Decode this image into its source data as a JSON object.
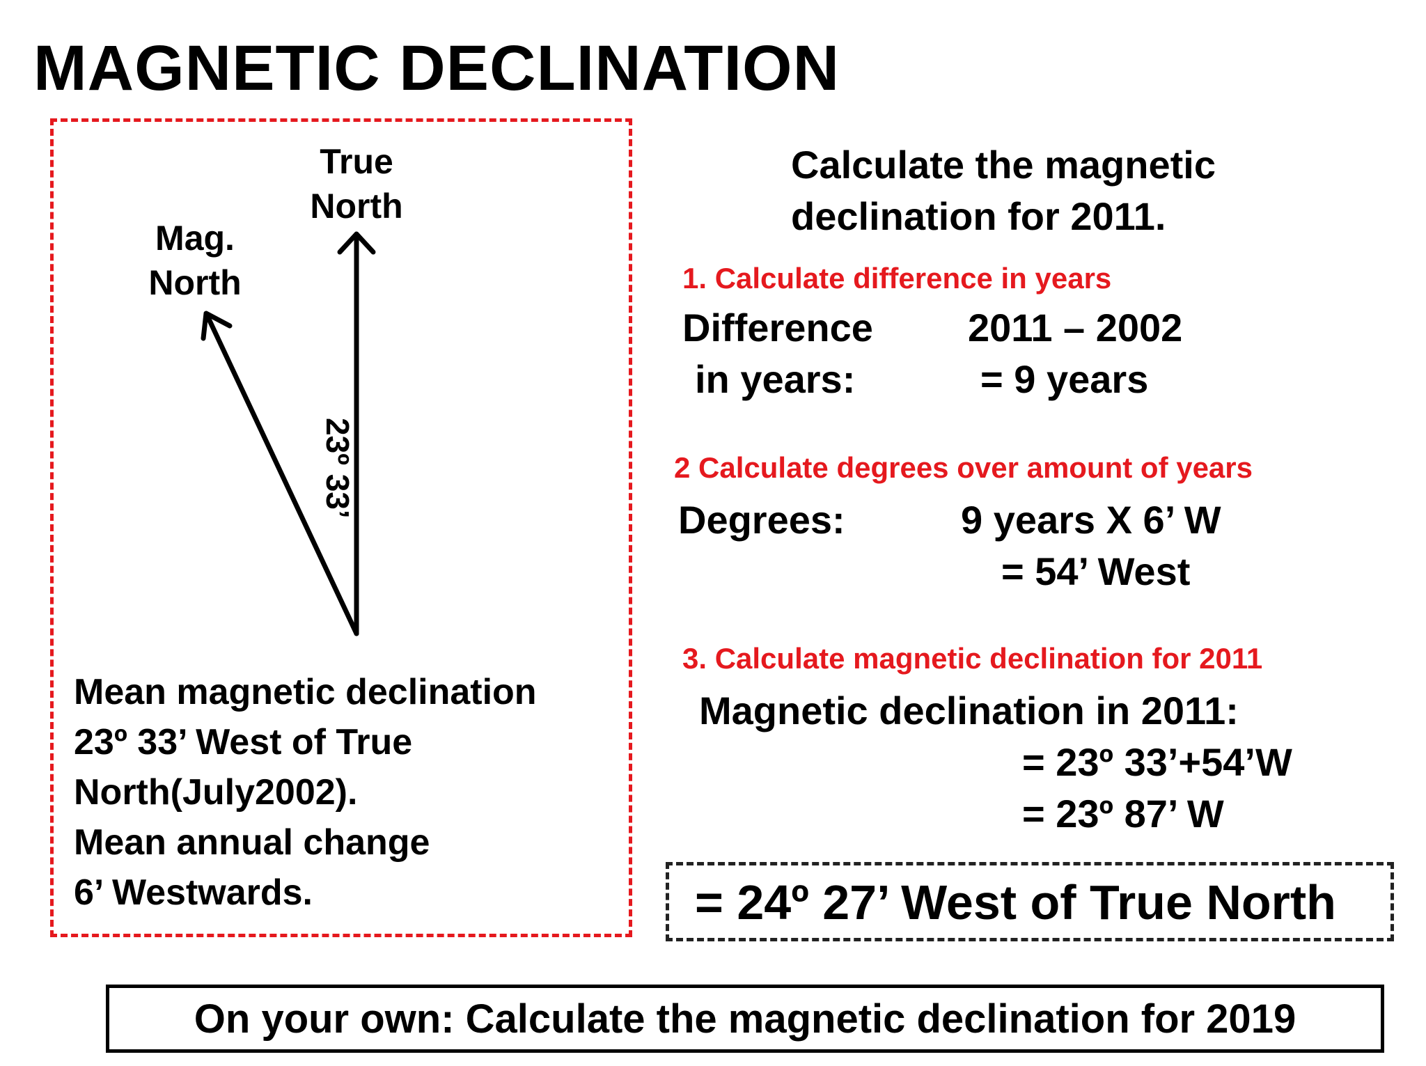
{
  "title": "MAGNETIC DECLINATION",
  "diagram": {
    "true_north_line1": "True",
    "true_north_line2": "North",
    "mag_north_line1": "Mag.",
    "mag_north_line2": "North",
    "angle_label": "23º 33’",
    "notes": [
      "Mean magnetic declination",
      "23º 33’ West of True",
      "North(July2002).",
      "Mean annual change",
      "6’ Westwards."
    ]
  },
  "question": {
    "line1": "Calculate the magnetic",
    "line2": "declination for 2011."
  },
  "step1": {
    "heading": "1. Calculate difference in years",
    "label1": "Difference",
    "label2": "in years:",
    "calc1": "2011 – 2002",
    "calc2": "= 9 years"
  },
  "step2": {
    "heading": "2 Calculate degrees over amount of years",
    "label": "Degrees:",
    "calc1": "9 years X 6’ W",
    "calc2": "= 54’ West"
  },
  "step3": {
    "heading": "3. Calculate magnetic declination for 2011",
    "label": "Magnetic declination in 2011:",
    "calc1": "= 23º 33’+54’W",
    "calc2": "= 23º 87’ W"
  },
  "answer": "= 24º 27’ West of True North",
  "footer": "On your own: Calculate the magnetic declination for 2019",
  "colors": {
    "accent": "#e5191e",
    "text": "#000000"
  }
}
